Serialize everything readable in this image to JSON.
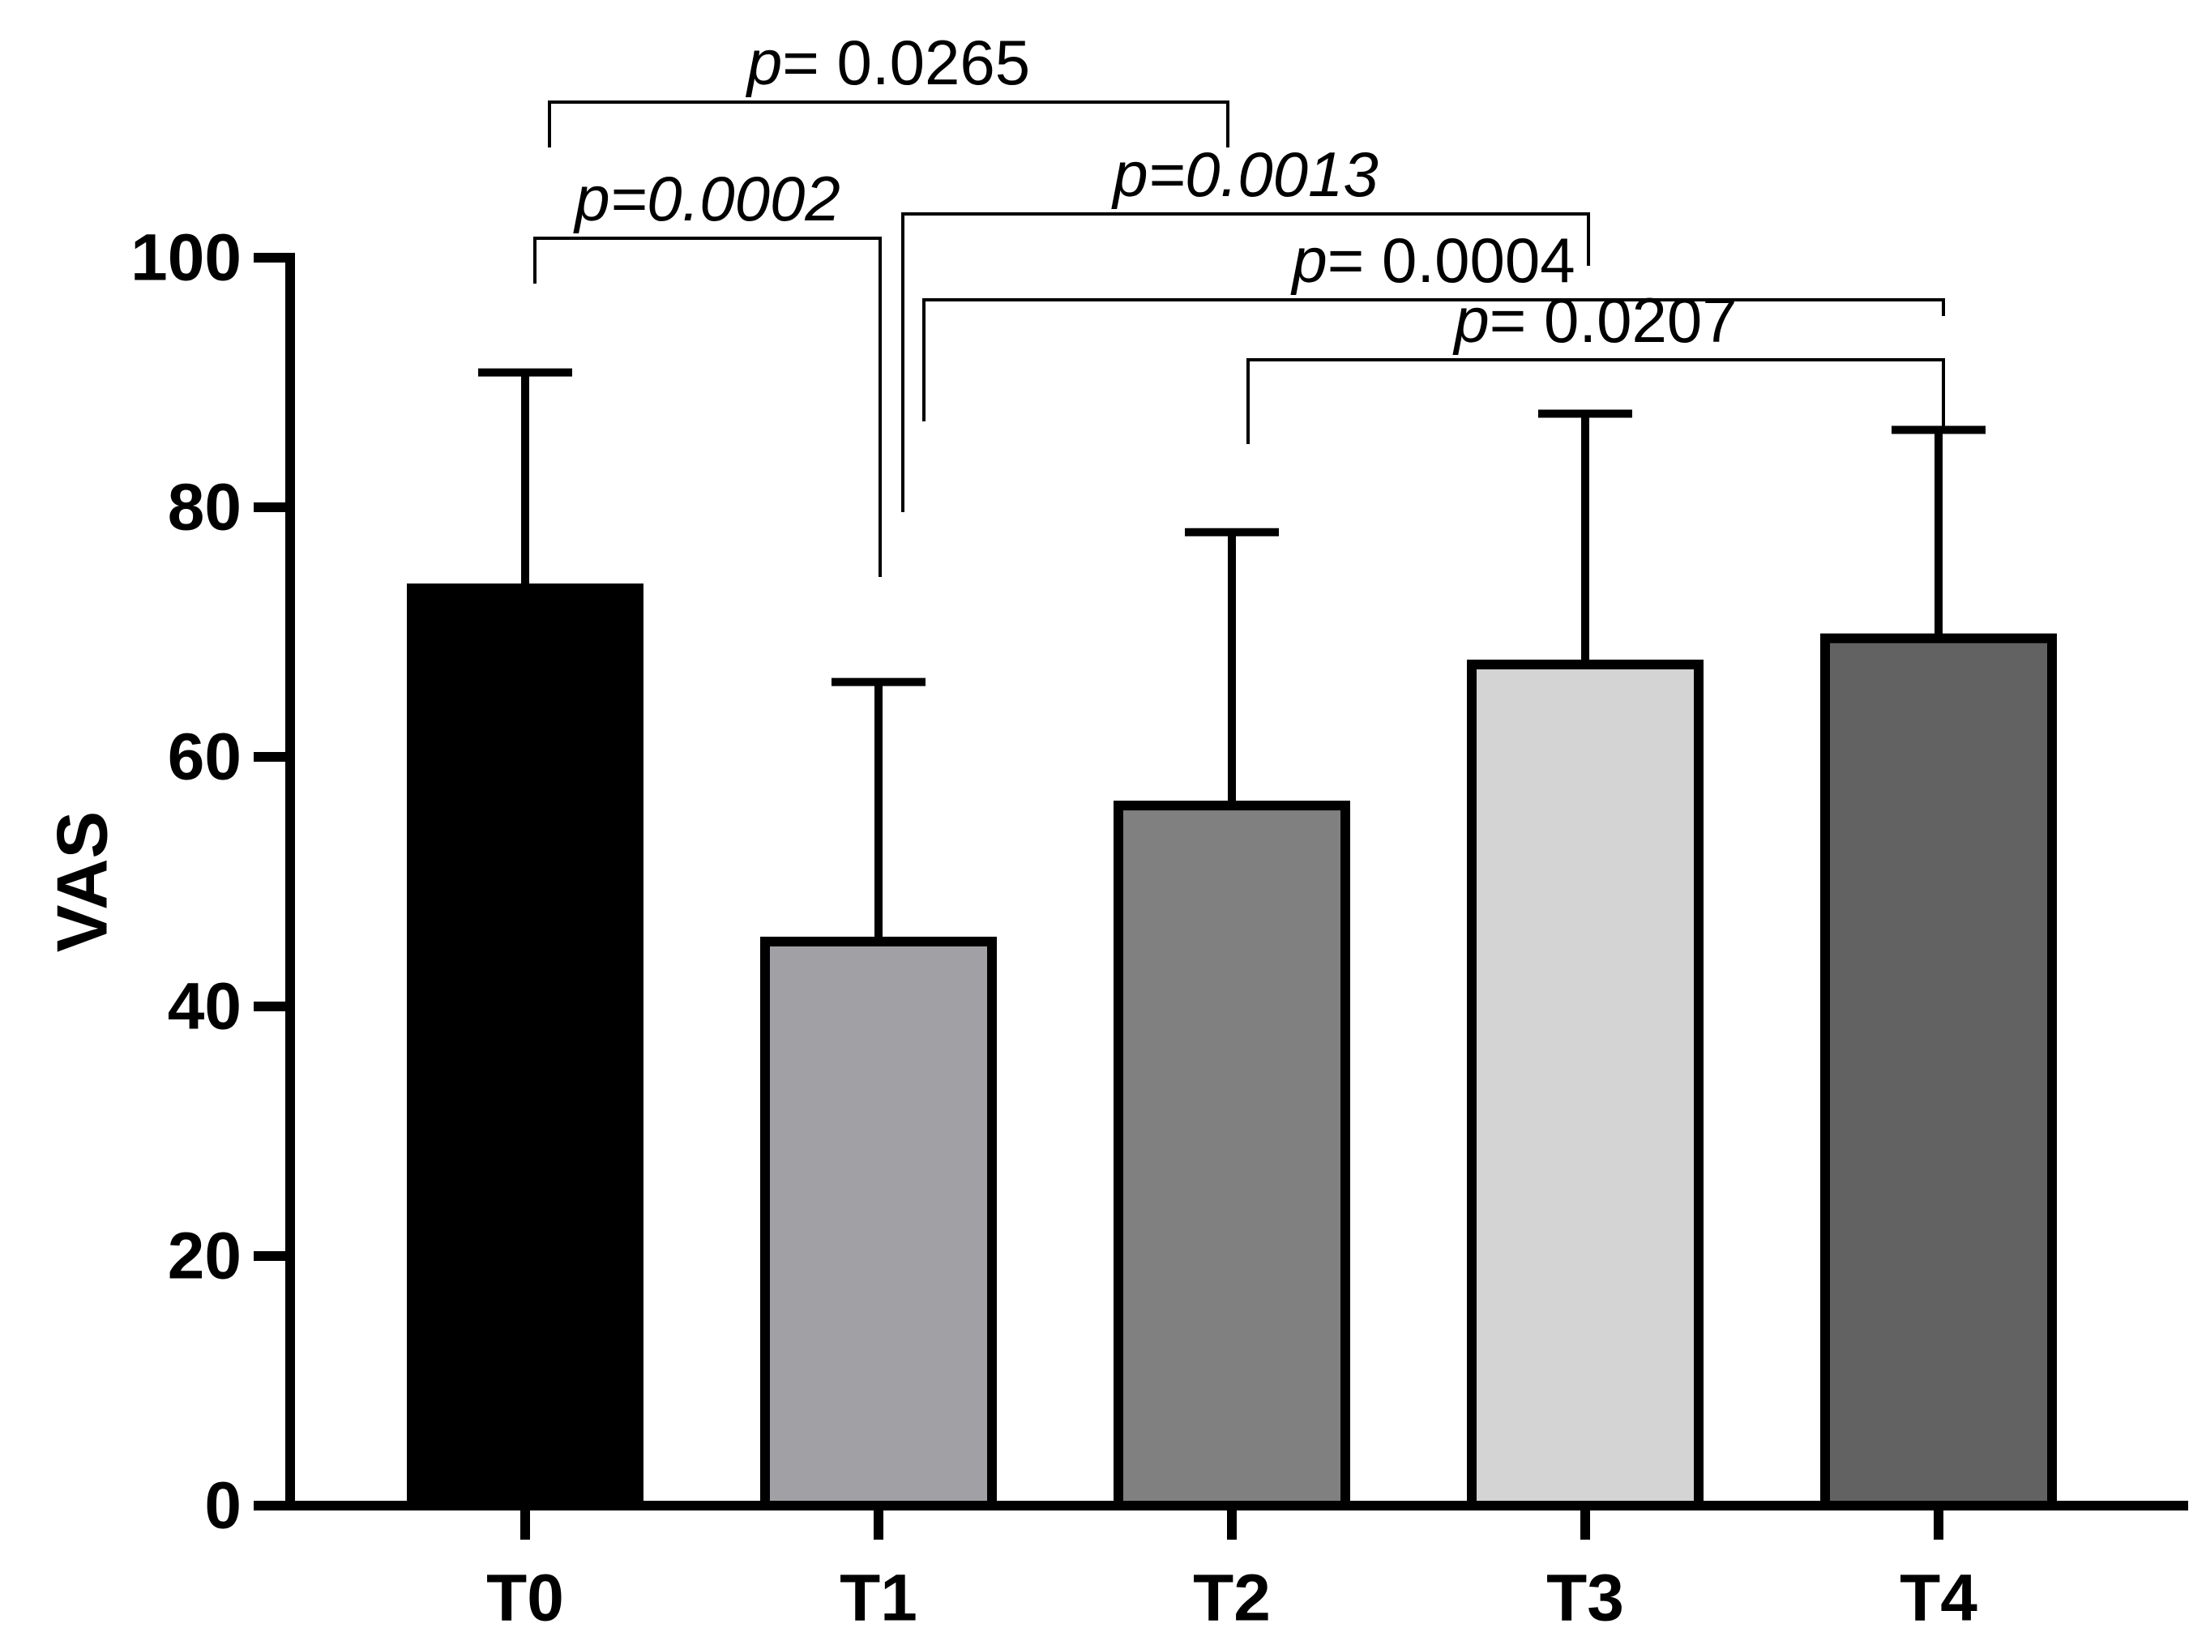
{
  "chart_data": {
    "type": "bar",
    "title": "",
    "xlabel": "",
    "ylabel": "VAS",
    "ylim": [
      0,
      100
    ],
    "yticks": [
      0,
      20,
      40,
      60,
      80,
      100
    ],
    "categories": [
      "T0",
      "T1",
      "T2",
      "T3",
      "T4"
    ],
    "values": [
      73.5,
      45.2,
      56.1,
      67.4,
      69.5
    ],
    "error_upper": [
      90.8,
      66.0,
      78.0,
      87.5,
      86.2
    ],
    "colors": [
      "#000000",
      "#a1a1a5",
      "#808080",
      "#d4d4d4",
      "#626262"
    ],
    "comparisons": [
      {
        "from": "T0",
        "to": "T2",
        "level": 0,
        "label_p": "p",
        "label_rest": "= 0.0265",
        "rest_italic": false
      },
      {
        "from": "T0",
        "to": "T1",
        "level": 1,
        "label_p": "p",
        "label_rest": "=0.0002",
        "rest_italic": true
      },
      {
        "from": "T1",
        "to": "T3",
        "level": 2,
        "label_p": "p",
        "label_rest": "=0.0013",
        "rest_italic": true
      },
      {
        "from": "T1",
        "to": "T4",
        "level": 3,
        "label_p": "p",
        "label_rest": "= 0.0004",
        "rest_italic": false
      },
      {
        "from": "T2",
        "to": "T4",
        "level": 4,
        "label_p": "p",
        "label_rest": "= 0.0207",
        "rest_italic": false
      }
    ]
  }
}
